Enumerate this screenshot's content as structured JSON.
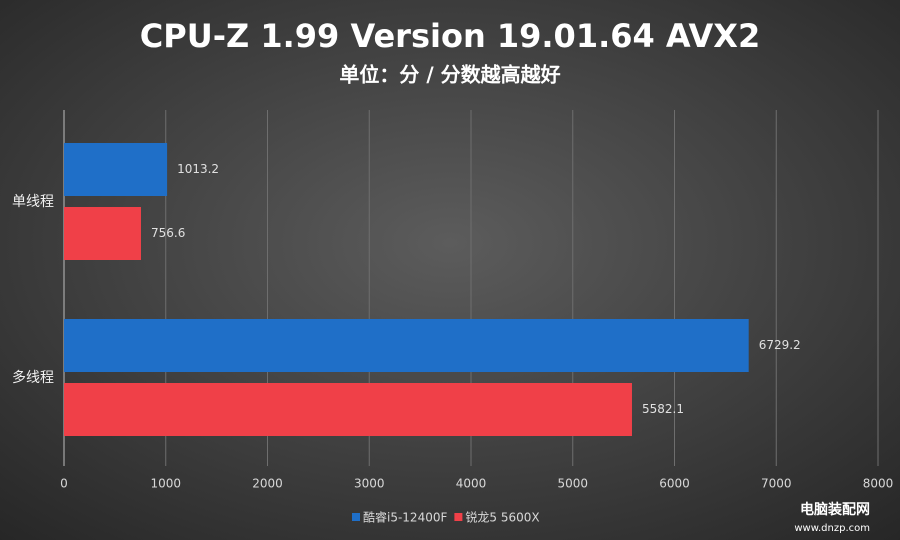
{
  "chart_data": {
    "type": "hbar",
    "title": "CPU-Z 1.99 Version 19.01.64 AVX2",
    "subtitle": "单位：分 / 分数越高越好",
    "categories": [
      "单线程",
      "多线程"
    ],
    "series": [
      {
        "name": "酷睿i5-12400F",
        "color": "#1f6fc8",
        "values": [
          1013.2,
          6729.2
        ]
      },
      {
        "name": "锐龙5 5600X",
        "color": "#f04048",
        "values": [
          756.6,
          5582.1
        ]
      }
    ],
    "xlim": [
      0,
      8000
    ],
    "xticks": [
      0,
      1000,
      2000,
      3000,
      4000,
      5000,
      6000,
      7000,
      8000
    ],
    "grid": true,
    "legend": "bottom"
  },
  "watermark": {
    "name": "电脑装配网",
    "url": "www.dnzp.com"
  }
}
